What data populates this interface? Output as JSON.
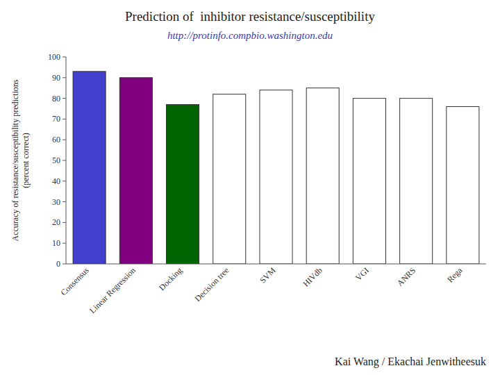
{
  "chart_data": {
    "type": "bar",
    "title": "Prediction of  inhibitor resistance/susceptibility",
    "subtitle": "http://protinfo.compbio.washington.edu",
    "ylabel": "Accuracy of resistance/susceptibility predictions\n(percent correct)",
    "annotations": [
      "Kai Wang / Ekachai Jenwitheesuk"
    ],
    "categories": [
      "Consensus",
      "Linear Regression",
      "Docking",
      "Decision tree",
      "SVM",
      "HIVdb",
      "VGI",
      "ANRS",
      "Rega"
    ],
    "values": [
      93,
      90,
      77,
      82,
      84,
      85,
      80,
      80,
      76
    ],
    "colors": [
      "#4040cc",
      "#800080",
      "#006400",
      "#ffffff",
      "#ffffff",
      "#ffffff",
      "#ffffff",
      "#ffffff",
      "#ffffff"
    ],
    "ylim": [
      0,
      100
    ],
    "yticks": [
      0,
      10,
      20,
      30,
      40,
      50,
      60,
      70,
      80,
      90,
      100
    ],
    "grid": false
  }
}
